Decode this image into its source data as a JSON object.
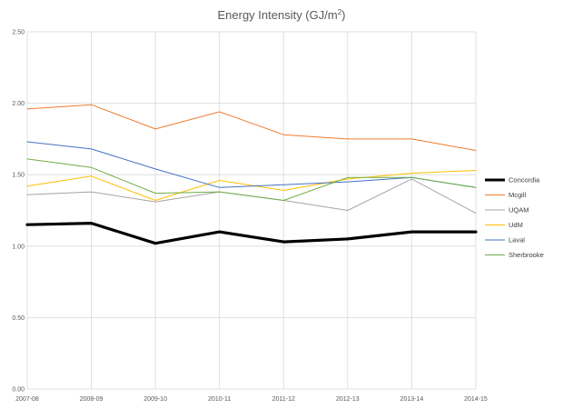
{
  "chart_data": {
    "type": "line",
    "title": "Energy Intensity (GJ/m",
    "title_superscript": "2",
    "title_suffix": ")",
    "xlabel": "",
    "ylabel": "",
    "x": [
      "2007-08",
      "2008-09",
      "2009-10",
      "2010-11",
      "2011-12",
      "2012-13",
      "2013-14",
      "2014-15"
    ],
    "ylim": [
      0,
      2.5
    ],
    "y_ticks": [
      "0.00",
      "0.50",
      "1.00",
      "1.50",
      "2.00",
      "2.50"
    ],
    "grid": true,
    "legend_position": "right",
    "series": [
      {
        "name": "Concordia",
        "color": "#000000",
        "values": [
          1.15,
          1.16,
          1.02,
          1.1,
          1.03,
          1.05,
          1.1,
          1.1
        ]
      },
      {
        "name": "Mcgill",
        "color": "#ed7d31",
        "values": [
          1.96,
          1.99,
          1.82,
          1.94,
          1.78,
          1.75,
          1.75,
          1.67
        ]
      },
      {
        "name": "UQAM",
        "color": "#a5a5a5",
        "values": [
          1.36,
          1.38,
          1.31,
          1.38,
          1.32,
          1.25,
          1.47,
          1.23
        ]
      },
      {
        "name": "UdM",
        "color": "#ffc000",
        "values": [
          1.42,
          1.49,
          1.32,
          1.46,
          1.39,
          1.47,
          1.51,
          1.53
        ]
      },
      {
        "name": "Laval",
        "color": "#4472c4",
        "values": [
          1.73,
          1.68,
          1.54,
          1.41,
          1.43,
          1.45,
          1.48,
          1.41
        ]
      },
      {
        "name": "Sherbrooke",
        "color": "#70ad47",
        "values": [
          1.61,
          1.55,
          1.37,
          1.38,
          1.32,
          1.48,
          1.48,
          1.41
        ]
      }
    ]
  }
}
